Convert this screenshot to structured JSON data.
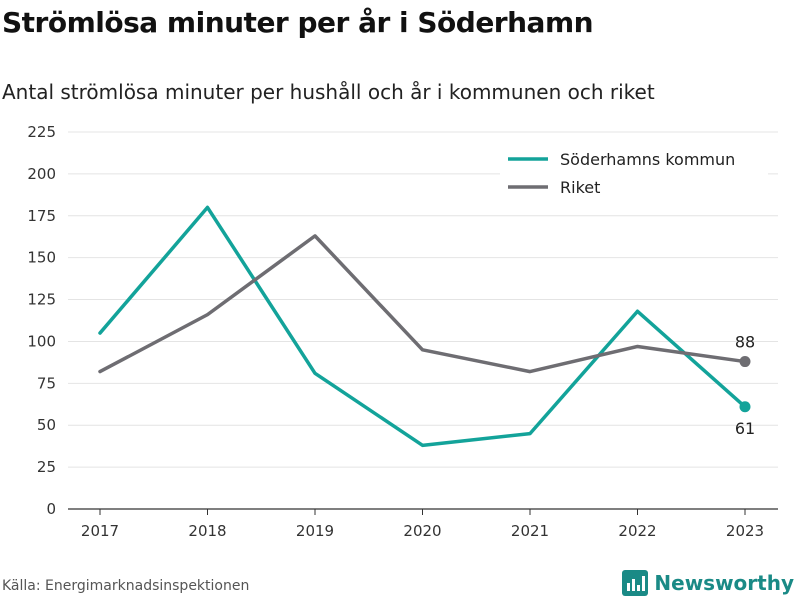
{
  "title": "Strömlösa minuter per år i Söderhamn",
  "subtitle": "Antal strömlösa minuter per hushåll och år i kommunen och riket",
  "source": "Källa: Energimarknadsinspektionen",
  "brand": {
    "name": "Newsworthy",
    "icon": "bar-chart-logo-icon",
    "color": "#1a8a86"
  },
  "chart_data": {
    "type": "line",
    "x": [
      "2017",
      "2018",
      "2019",
      "2020",
      "2021",
      "2022",
      "2023"
    ],
    "ylim": [
      0,
      225
    ],
    "yticks": [
      0,
      25,
      50,
      75,
      100,
      125,
      150,
      175,
      200,
      225
    ],
    "grid": true,
    "legend_position": "top-right",
    "series": [
      {
        "name": "Söderhamns kommun",
        "color": "#13a39a",
        "values": [
          105,
          180,
          81,
          38,
          45,
          118,
          61
        ],
        "end_label": "61"
      },
      {
        "name": "Riket",
        "color": "#6e6d72",
        "values": [
          82,
          116,
          163,
          95,
          82,
          97,
          88
        ],
        "end_label": "88"
      }
    ]
  }
}
